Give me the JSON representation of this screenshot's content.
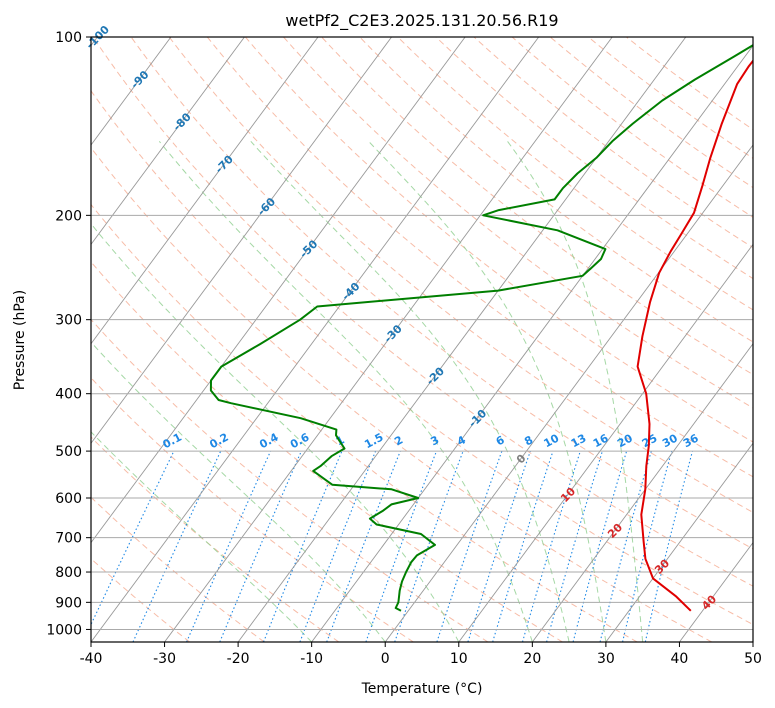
{
  "chart_data": {
    "type": "line",
    "title": "wetPf2_C2E3.2025.131.20.56.R19",
    "xlabel": "Temperature (°C)",
    "ylabel": "Pressure (hPa)",
    "xlim": [
      -40,
      50
    ],
    "ylim": [
      1050,
      100
    ],
    "y_scale": "log",
    "grid": true,
    "x_ticks": [
      -40,
      -30,
      -20,
      -10,
      0,
      10,
      20,
      30,
      40,
      50
    ],
    "y_ticks": [
      100,
      200,
      300,
      400,
      500,
      600,
      700,
      800,
      900,
      1000
    ],
    "colors": {
      "temperature": "#e00000",
      "dewpoint": "#007f00",
      "isotherm_label_cold": "#1f77b4",
      "isotherm_label_warm": "#d62728",
      "isotherm_label_zero": "#7f7f7f",
      "mixing_ratio": "#1e88e5",
      "dry_adiabat": "#f4a58a",
      "moist_adiabat": "#8fce8f",
      "isobar_grid": "#aaaaaa"
    },
    "series": [
      {
        "key": "temperature",
        "points": [
          [
            38.4,
            930
          ],
          [
            35.0,
            880
          ],
          [
            30.0,
            820
          ],
          [
            27.0,
            760
          ],
          [
            25.0,
            710
          ],
          [
            22.0,
            640
          ],
          [
            20.0,
            580
          ],
          [
            17.8,
            530
          ],
          [
            16.1,
            490
          ],
          [
            14.0,
            450
          ],
          [
            10.5,
            400
          ],
          [
            6.6,
            360
          ],
          [
            4.2,
            320
          ],
          [
            1.8,
            280
          ],
          [
            0.1,
            250
          ],
          [
            -0.5,
            230
          ],
          [
            -0.8,
            215
          ],
          [
            -1.2,
            198
          ],
          [
            -2.8,
            178
          ],
          [
            -4.5,
            160
          ],
          [
            -6.4,
            140
          ],
          [
            -8.3,
            120
          ],
          [
            -8.5,
            112
          ],
          [
            -8.4,
            106
          ],
          [
            -8.7,
            100
          ]
        ]
      },
      {
        "key": "dewpoint",
        "points": [
          [
            -1.0,
            930
          ],
          [
            -2.0,
            920
          ],
          [
            -2.2,
            900
          ],
          [
            -3.2,
            860
          ],
          [
            -3.8,
            830
          ],
          [
            -4.2,
            800
          ],
          [
            -4.5,
            770
          ],
          [
            -4.4,
            750
          ],
          [
            -3.0,
            720
          ],
          [
            -6.0,
            690
          ],
          [
            -13.0,
            665
          ],
          [
            -14.5,
            650
          ],
          [
            -13.5,
            630
          ],
          [
            -13.0,
            615
          ],
          [
            -10.0,
            600
          ],
          [
            -14.5,
            580
          ],
          [
            -23.0,
            570
          ],
          [
            -27.0,
            540
          ],
          [
            -26.5,
            530
          ],
          [
            -26.0,
            510
          ],
          [
            -25.0,
            495
          ],
          [
            -26.5,
            480
          ],
          [
            -27.5,
            470
          ],
          [
            -28.0,
            460
          ],
          [
            -34.0,
            440
          ],
          [
            -45.0,
            415
          ],
          [
            -47.0,
            410
          ],
          [
            -49.0,
            395
          ],
          [
            -50.0,
            380
          ],
          [
            -50.0,
            360
          ],
          [
            -47.0,
            330
          ],
          [
            -44.0,
            300
          ],
          [
            -43.0,
            285
          ],
          [
            -20.0,
            268
          ],
          [
            -10.0,
            253
          ],
          [
            -9.6,
            245
          ],
          [
            -9.2,
            237
          ],
          [
            -9.6,
            228
          ],
          [
            -18.0,
            212
          ],
          [
            -29.6,
            200
          ],
          [
            -28.0,
            196
          ],
          [
            -21.5,
            188
          ],
          [
            -21.5,
            180
          ],
          [
            -21.0,
            170
          ],
          [
            -20.0,
            160
          ],
          [
            -19.5,
            150
          ],
          [
            -18.5,
            140
          ],
          [
            -16.8,
            128
          ],
          [
            -14.5,
            118
          ],
          [
            -11.5,
            108
          ],
          [
            -9.0,
            100
          ]
        ]
      }
    ],
    "mixing_ratio_labels": [
      "0.1",
      "0.2",
      "0.4",
      "0.6",
      "1",
      "1.5",
      "2",
      "3",
      "4",
      "6",
      "8",
      "10",
      "13",
      "16",
      "20",
      "25",
      "30",
      "36"
    ],
    "isotherm_labels": [
      "-100",
      "-90",
      "-80",
      "-70",
      "-60",
      "-50",
      "-40",
      "-30",
      "-20",
      "-10",
      "0",
      "10",
      "20",
      "30",
      "40"
    ]
  }
}
